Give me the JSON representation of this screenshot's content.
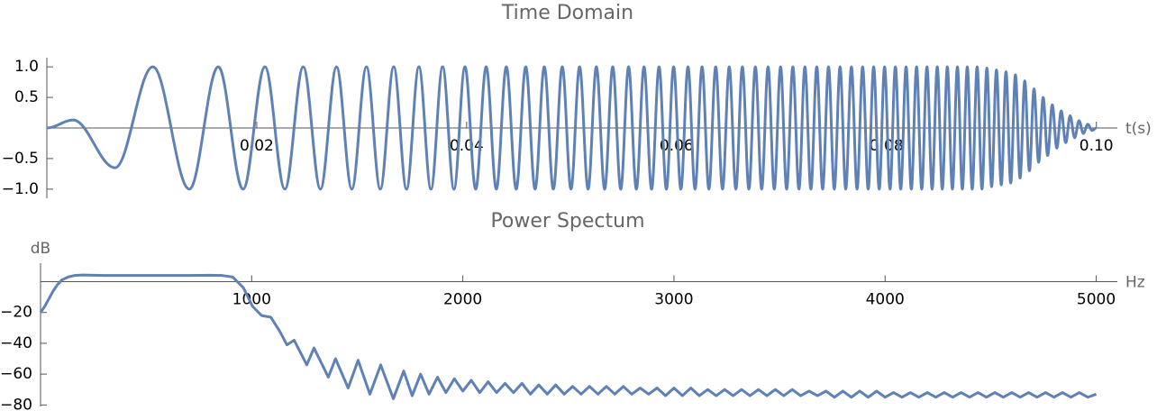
{
  "chart_data": [
    {
      "type": "line",
      "title": "Time Domain",
      "xlabel": "t(s)",
      "color": "#5f81b5",
      "smooth": true,
      "xlim": [
        0,
        0.102
      ],
      "ylim": [
        -1.15,
        1.15
      ],
      "xticks": [
        0.02,
        0.04,
        0.06,
        0.08,
        {
          "value": 0.1,
          "label": "0.10"
        }
      ],
      "yticks": [
        {
          "value": -1,
          "label": "−1.0"
        },
        {
          "value": -0.5,
          "label": "−0.5"
        },
        0.5,
        {
          "value": 1,
          "label": "1.0"
        }
      ],
      "x": [
        0,
        0.0025,
        0.0065,
        0.0101,
        0.01358,
        0.01634,
        0.0187,
        0.02078,
        0.02268,
        0.02443,
        0.02607,
        0.0276,
        0.02906,
        0.03045,
        0.03177,
        0.03305,
        0.03427,
        0.03545,
        0.0366,
        0.03771,
        0.03879,
        0.03984,
        0.04086,
        0.04186,
        0.04283,
        0.04378,
        0.04472,
        0.04563,
        0.04652,
        0.0474,
        0.04826,
        0.04911,
        0.04994,
        0.05076,
        0.05157,
        0.05236,
        0.05315,
        0.05392,
        0.05468,
        0.05543,
        0.05617,
        0.0569,
        0.05762,
        0.05833,
        0.05903,
        0.05972,
        0.06041,
        0.06109,
        0.06176,
        0.06243,
        0.06308,
        0.06373,
        0.06438,
        0.06502,
        0.06565,
        0.06627,
        0.06689,
        0.06751,
        0.06811,
        0.06872,
        0.06931,
        0.06991,
        0.07049,
        0.07108,
        0.07166,
        0.07223,
        0.0728,
        0.07336,
        0.07392,
        0.07448,
        0.07503,
        0.07558,
        0.07612,
        0.07666,
        0.0772,
        0.07773,
        0.07826,
        0.07878,
        0.07931,
        0.07982,
        0.08034,
        0.08085,
        0.08136,
        0.08187,
        0.08237,
        0.08287,
        0.08336,
        0.08386,
        0.08435,
        0.08484,
        0.08532,
        0.0858,
        0.08628,
        0.08676,
        0.08723,
        0.0877,
        0.08817,
        0.08864,
        0.0891,
        0.08957,
        0.09002,
        0.09048,
        0.09094,
        0.09139,
        0.09184,
        0.09229,
        0.09273,
        0.09318,
        0.09362,
        0.09406,
        0.0945,
        0.09493,
        0.09536,
        0.0958,
        0.09623,
        0.09665,
        0.09708,
        0.0975,
        0.09793,
        0.09835,
        0.09876,
        0.09918,
        0.0996,
        0.1
      ],
      "values": [
        0,
        0.13,
        -0.65,
        1,
        -1,
        1,
        -1,
        1,
        -1,
        1,
        -1,
        1,
        -1,
        1,
        -1,
        1,
        -1,
        1,
        -1,
        1,
        -1,
        1,
        -1,
        1,
        -1,
        1,
        -1,
        1,
        -1,
        1,
        -1,
        1,
        -1,
        1,
        -1,
        1,
        -1,
        1,
        -1,
        1,
        -1,
        1,
        -1,
        1,
        -1,
        1,
        -1,
        1,
        -1,
        1,
        -1,
        1,
        -1,
        1,
        -1,
        1,
        -1,
        1,
        -1,
        1,
        -1,
        1,
        -1,
        1,
        -1,
        1,
        -1,
        1,
        -1,
        1,
        -1,
        1,
        -1,
        1,
        -1,
        1,
        -1,
        1,
        -1,
        1,
        -1,
        1,
        -1,
        1,
        -1,
        1,
        -1,
        1,
        -1,
        1,
        -1,
        1,
        -1,
        1,
        -1,
        1,
        -1,
        1,
        -1,
        0.98,
        -0.96,
        0.95,
        -0.93,
        0.92,
        -0.9,
        0.87,
        -0.82,
        0.77,
        -0.7,
        0.64,
        -0.56,
        0.5,
        -0.45,
        0.38,
        -0.33,
        0.28,
        -0.24,
        0.2,
        -0.16,
        0.12,
        -0.09,
        0.06,
        -0.04,
        0
      ]
    },
    {
      "type": "line",
      "title": "Power Spectum",
      "xlabel": "Hz",
      "ylabel": "dB",
      "color": "#5f81b5",
      "smooth": false,
      "xlim": [
        0,
        5100
      ],
      "ylim": [
        -81,
        12
      ],
      "xticks": [
        1000,
        2000,
        3000,
        4000,
        5000
      ],
      "yticks": [
        {
          "value": -80,
          "label": "−80"
        },
        {
          "value": -60,
          "label": "−60"
        },
        {
          "value": -40,
          "label": "−40"
        },
        {
          "value": -20,
          "label": "−20"
        }
      ],
      "x": [
        0,
        20,
        40,
        60,
        80,
        100,
        130,
        160,
        200,
        300,
        400,
        500,
        600,
        700,
        800,
        860,
        910,
        961,
        1004,
        1047,
        1090,
        1132,
        1167,
        1201,
        1261,
        1295,
        1363,
        1397,
        1457,
        1504,
        1560,
        1611,
        1671,
        1720,
        1760,
        1800,
        1840,
        1880,
        1920,
        1960,
        2000,
        2040,
        2080,
        2120,
        2160,
        2200,
        2240,
        2280,
        2320,
        2360,
        2400,
        2440,
        2480,
        2520,
        2560,
        2600,
        2640,
        2680,
        2720,
        2760,
        2800,
        2840,
        2880,
        2920,
        2960,
        3000,
        3040,
        3080,
        3120,
        3160,
        3200,
        3240,
        3280,
        3320,
        3360,
        3400,
        3440,
        3480,
        3520,
        3560,
        3600,
        3640,
        3680,
        3720,
        3760,
        3800,
        3840,
        3880,
        3920,
        3960,
        4000,
        4040,
        4080,
        4120,
        4160,
        4200,
        4240,
        4280,
        4320,
        4360,
        4400,
        4440,
        4480,
        4520,
        4560,
        4600,
        4640,
        4680,
        4720,
        4760,
        4800,
        4840,
        4880,
        4920,
        4960,
        5000
      ],
      "values": [
        -20,
        -16,
        -11,
        -6,
        -2,
        1,
        3,
        4,
        4.3,
        4,
        4,
        4,
        4,
        4,
        4.2,
        4,
        3,
        -4,
        -16,
        -22,
        -23,
        -32,
        -41,
        -38,
        -54,
        -43,
        -62,
        -50,
        -69,
        -51,
        -73,
        -54,
        -76,
        -58,
        -74,
        -60,
        -73,
        -62,
        -72,
        -63,
        -71,
        -64,
        -72,
        -65,
        -72,
        -66,
        -72,
        -66,
        -73,
        -67,
        -73,
        -67,
        -73,
        -68,
        -73,
        -68,
        -73,
        -68,
        -73,
        -68,
        -73,
        -69,
        -73,
        -69,
        -74,
        -69,
        -74,
        -69,
        -74,
        -70,
        -74,
        -70,
        -74,
        -70,
        -74,
        -70,
        -74,
        -70,
        -74,
        -70,
        -74,
        -71,
        -74,
        -71,
        -75,
        -71,
        -75,
        -71,
        -75,
        -71,
        -75,
        -72,
        -75,
        -72,
        -75,
        -72,
        -75,
        -72,
        -75,
        -72,
        -75,
        -72,
        -75,
        -72,
        -75,
        -72,
        -75,
        -72,
        -75,
        -72,
        -75,
        -72,
        -75,
        -72,
        -75,
        -73
      ]
    }
  ]
}
